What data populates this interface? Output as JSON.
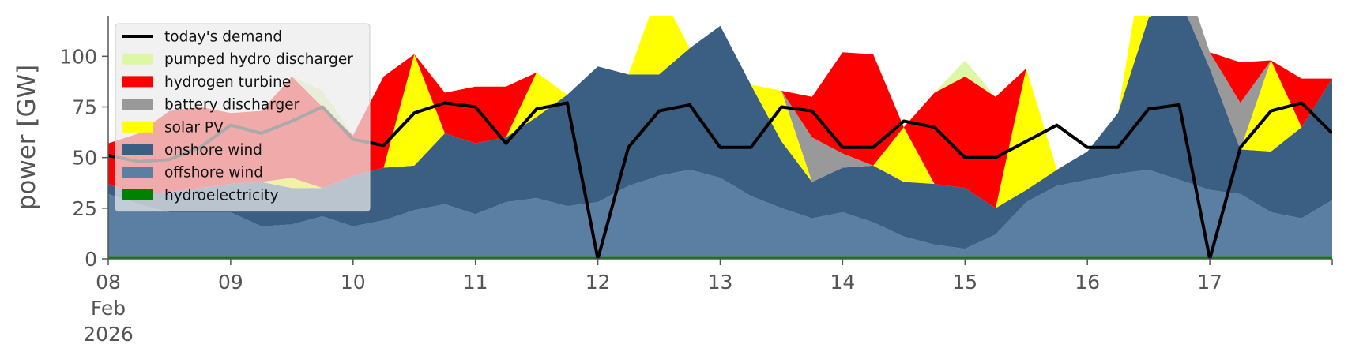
{
  "chart_data": {
    "type": "area",
    "ylabel": "power [GW]",
    "ylim": [
      0,
      120
    ],
    "y_ticks": [
      0,
      25,
      50,
      75,
      100
    ],
    "x_start_label": "08",
    "x_start_sublabels": [
      "Feb",
      "2026"
    ],
    "x_range": [
      "2026-02-08T00:00",
      "2026-02-18T00:00"
    ],
    "x_ticks": [
      {
        "label": "09",
        "date": "2026-02-09"
      },
      {
        "label": "10",
        "date": "2026-02-10"
      },
      {
        "label": "11",
        "date": "2026-02-11"
      },
      {
        "label": "12",
        "date": "2026-02-12"
      },
      {
        "label": "13",
        "date": "2026-02-13"
      },
      {
        "label": "14",
        "date": "2026-02-14"
      },
      {
        "label": "15",
        "date": "2026-02-15"
      },
      {
        "label": "16",
        "date": "2026-02-16"
      },
      {
        "label": "17",
        "date": "2026-02-17"
      }
    ],
    "legend_position": "top-left",
    "grid": false,
    "x": [
      "2026-02-08 00:00",
      "2026-02-08 06:00",
      "2026-02-08 12:00",
      "2026-02-08 18:00",
      "2026-02-09 00:00",
      "2026-02-09 06:00",
      "2026-02-09 12:00",
      "2026-02-09 18:00",
      "2026-02-10 00:00",
      "2026-02-10 06:00",
      "2026-02-10 12:00",
      "2026-02-10 18:00",
      "2026-02-11 00:00",
      "2026-02-11 06:00",
      "2026-02-11 12:00",
      "2026-02-11 18:00",
      "2026-02-12 00:00",
      "2026-02-12 06:00",
      "2026-02-12 12:00",
      "2026-02-12 18:00",
      "2026-02-13 00:00",
      "2026-02-13 06:00",
      "2026-02-13 12:00",
      "2026-02-13 18:00",
      "2026-02-14 00:00",
      "2026-02-14 06:00",
      "2026-02-14 12:00",
      "2026-02-14 18:00",
      "2026-02-15 00:00",
      "2026-02-15 06:00",
      "2026-02-15 12:00",
      "2026-02-15 18:00",
      "2026-02-16 00:00",
      "2026-02-16 06:00",
      "2026-02-16 12:00",
      "2026-02-16 18:00",
      "2026-02-17 00:00",
      "2026-02-17 06:00",
      "2026-02-17 12:00",
      "2026-02-17 18:00",
      "2026-02-18 00:00"
    ],
    "stack_series": [
      {
        "name": "hydroelectricity",
        "color": "#008000",
        "values": [
          1,
          1,
          1,
          1,
          1,
          1,
          1,
          1,
          1,
          1,
          1,
          1,
          1,
          1,
          1,
          1,
          1,
          1,
          1,
          1,
          1,
          1,
          1,
          1,
          1,
          1,
          1,
          1,
          1,
          1,
          1,
          1,
          1,
          1,
          1,
          1,
          1,
          1,
          1,
          1,
          1
        ]
      },
      {
        "name": "offshore wind",
        "color": "#5b7fa3",
        "values": [
          31,
          26,
          22,
          22,
          22,
          15,
          16,
          20,
          15,
          18,
          23,
          26,
          21,
          27,
          29,
          25,
          27,
          35,
          40,
          43,
          39,
          30,
          24,
          19,
          22,
          17,
          10,
          6,
          4,
          11,
          27,
          35,
          38,
          41,
          43,
          38,
          33,
          31,
          22,
          19,
          28
        ]
      },
      {
        "name": "onshore wind",
        "color": "#3b5f82",
        "values": [
          5,
          5,
          10,
          12,
          14,
          22,
          18,
          14,
          25,
          26,
          22,
          35,
          35,
          32,
          40,
          55,
          67,
          55,
          50,
          60,
          75,
          55,
          33,
          18,
          22,
          28,
          27,
          30,
          30,
          13,
          6,
          8,
          14,
          30,
          75,
          90,
          60,
          22,
          30,
          45,
          60
        ]
      },
      {
        "name": "solar PV",
        "color": "#ffff00",
        "values": [
          0,
          0,
          0,
          0,
          0,
          0,
          5,
          0,
          0,
          0,
          55,
          0,
          0,
          0,
          22,
          0,
          0,
          0,
          42,
          0,
          0,
          0,
          25,
          0,
          0,
          0,
          27,
          0,
          0,
          0,
          60,
          0,
          0,
          0,
          45,
          0,
          0,
          0,
          45,
          0,
          0
        ]
      },
      {
        "name": "battery discharger",
        "color": "#999999",
        "values": [
          0,
          0,
          0,
          0,
          0,
          0,
          0,
          0,
          0,
          0,
          0,
          0,
          0,
          0,
          0,
          0,
          0,
          0,
          0,
          0,
          0,
          0,
          0,
          22,
          7,
          0,
          0,
          0,
          0,
          0,
          0,
          0,
          0,
          0,
          0,
          18,
          8,
          23,
          0,
          0,
          0
        ]
      },
      {
        "name": "hydrogen turbine",
        "color": "#ff0000",
        "values": [
          20,
          30,
          40,
          40,
          35,
          35,
          50,
          40,
          20,
          45,
          0,
          20,
          28,
          25,
          0,
          0,
          0,
          0,
          0,
          0,
          0,
          0,
          0,
          20,
          50,
          55,
          0,
          45,
          55,
          55,
          0,
          0,
          0,
          0,
          0,
          0,
          0,
          20,
          0,
          24,
          0
        ]
      },
      {
        "name": "pumped hydro discharger",
        "color": "#dcf7a6",
        "values": [
          0,
          0,
          0,
          0,
          0,
          0,
          0,
          8,
          0,
          0,
          0,
          0,
          0,
          0,
          0,
          0,
          0,
          0,
          0,
          0,
          0,
          0,
          0,
          0,
          0,
          0,
          0,
          0,
          8,
          0,
          0,
          0,
          0,
          0,
          0,
          0,
          0,
          0,
          0,
          0,
          0
        ]
      }
    ],
    "line_series": {
      "name": "today's demand",
      "color": "#000000",
      "values": [
        51,
        48,
        49,
        55,
        66,
        62,
        68,
        75,
        59,
        56,
        72,
        77,
        75,
        57,
        74,
        77,
        0,
        55,
        73,
        76,
        55,
        55,
        75,
        73,
        55,
        55,
        68,
        65,
        50,
        50,
        58,
        66,
        55,
        55,
        74,
        76,
        0,
        55,
        73,
        77,
        62
      ]
    },
    "legend": [
      {
        "label": "today's demand",
        "kind": "line",
        "color": "#000000"
      },
      {
        "label": "pumped hydro discharger",
        "kind": "patch",
        "color": "#dcf7a6"
      },
      {
        "label": "hydrogen turbine",
        "kind": "patch",
        "color": "#ff0000"
      },
      {
        "label": "battery discharger",
        "kind": "patch",
        "color": "#999999"
      },
      {
        "label": "solar PV",
        "kind": "patch",
        "color": "#ffff00"
      },
      {
        "label": "onshore wind",
        "kind": "patch",
        "color": "#3b5f82"
      },
      {
        "label": "offshore wind",
        "kind": "patch",
        "color": "#5b7fa3"
      },
      {
        "label": "hydroelectricity",
        "kind": "patch",
        "color": "#008000"
      }
    ]
  }
}
